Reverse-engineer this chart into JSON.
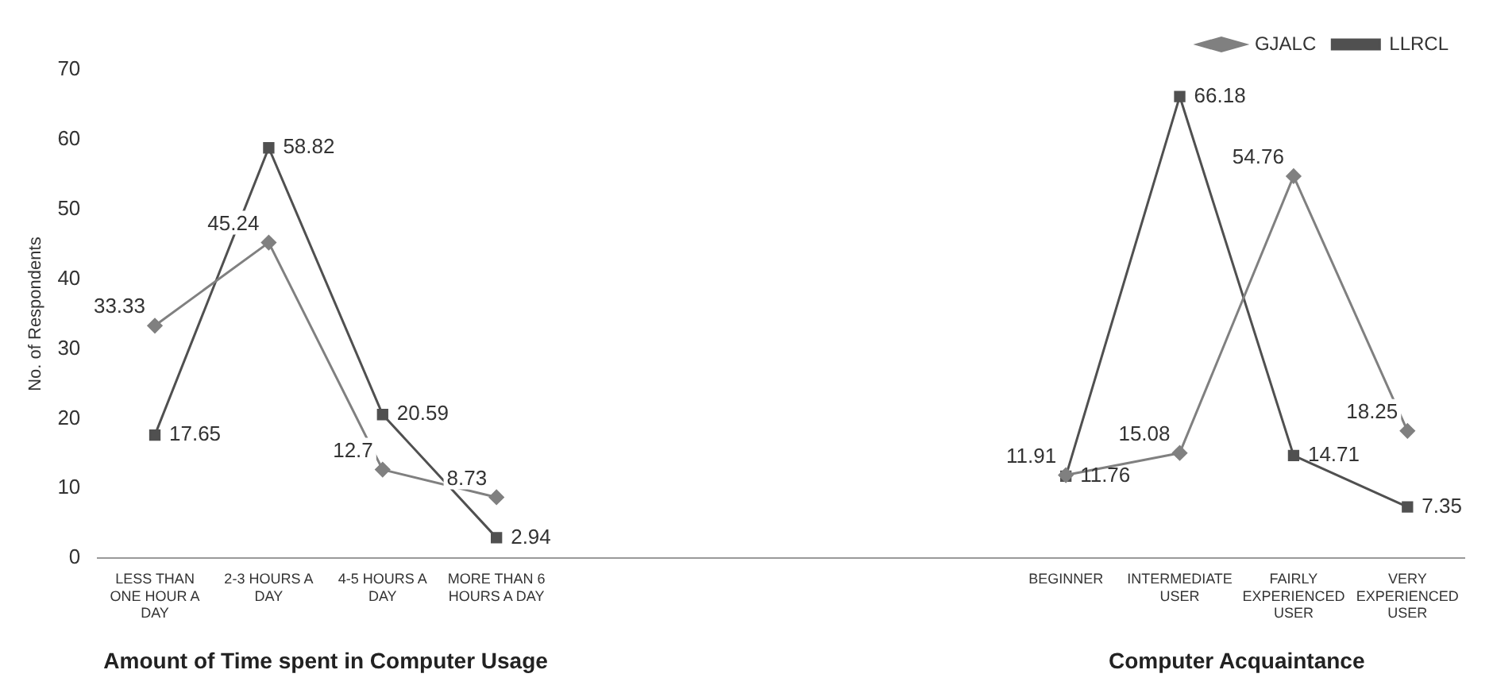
{
  "chart_data": {
    "type": "line",
    "ylabel": "No. of Respondents",
    "categories": [
      "LESS THAN ONE HOUR A DAY",
      "2-3 HOURS A DAY",
      "4-5 HOURS A DAY",
      "MORE THAN 6 HOURS A DAY",
      null,
      null,
      null,
      null,
      "BEGINNER",
      "INTERMEDIATE USER",
      "FAIRLY EXPERIENCED USER",
      "VERY EXPERIENCED USER"
    ],
    "series": [
      {
        "name": "GJALC",
        "color": "#808080",
        "marker": "diamond",
        "values": [
          33.33,
          45.24,
          12.7,
          8.73,
          null,
          null,
          null,
          null,
          11.91,
          15.08,
          54.76,
          18.25
        ]
      },
      {
        "name": "LLRCL",
        "color": "#505050",
        "marker": "square",
        "values": [
          17.65,
          58.82,
          20.59,
          2.94,
          null,
          null,
          null,
          null,
          11.76,
          66.18,
          14.71,
          7.35
        ]
      }
    ],
    "ylim": [
      0,
      70
    ],
    "yticks": [
      0,
      10,
      20,
      30,
      40,
      50,
      60,
      70
    ],
    "grid": false,
    "legend": "top right",
    "data_labels": true,
    "line_style": "solid",
    "annotations": [
      "Amount of Time spent in Computer Usage",
      "Computer Acquaintance"
    ]
  }
}
